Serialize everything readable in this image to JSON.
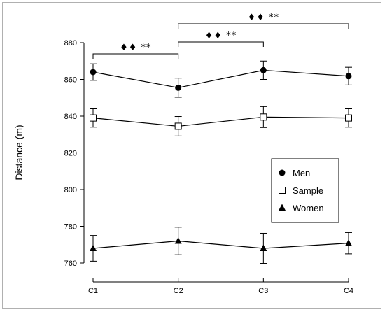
{
  "chart_data": {
    "type": "line",
    "title": "",
    "xlabel": "",
    "ylabel": "Distance (m)",
    "categories": [
      "C1",
      "C2",
      "C3",
      "C4"
    ],
    "ylim": [
      760,
      880
    ],
    "yticks": [
      760,
      780,
      800,
      820,
      840,
      860,
      880
    ],
    "grid": false,
    "legend_position": "right",
    "series": [
      {
        "name": "Men",
        "marker": "circle",
        "values": [
          864,
          855.5,
          865,
          861.8
        ],
        "errors": [
          4.5,
          5.2,
          5,
          4.8
        ],
        "color": "#000000"
      },
      {
        "name": "Sample",
        "marker": "square-open",
        "values": [
          839,
          834.5,
          839.5,
          839
        ],
        "errors": [
          5,
          5.3,
          5.7,
          5
        ],
        "color": "#000000"
      },
      {
        "name": "Women",
        "marker": "triangle",
        "values": [
          768,
          772,
          768,
          770.8
        ],
        "errors": [
          7,
          7.5,
          8.2,
          5.8
        ],
        "color": "#000000"
      }
    ],
    "annotations": [
      {
        "from": "C1",
        "to": "C2",
        "text": "♦♦ **",
        "level": 1
      },
      {
        "from": "C2",
        "to": "C3",
        "text": "♦♦ **",
        "level": 2
      },
      {
        "from": "C2",
        "to": "C4",
        "text": "♦♦ **",
        "level": 3
      }
    ]
  }
}
